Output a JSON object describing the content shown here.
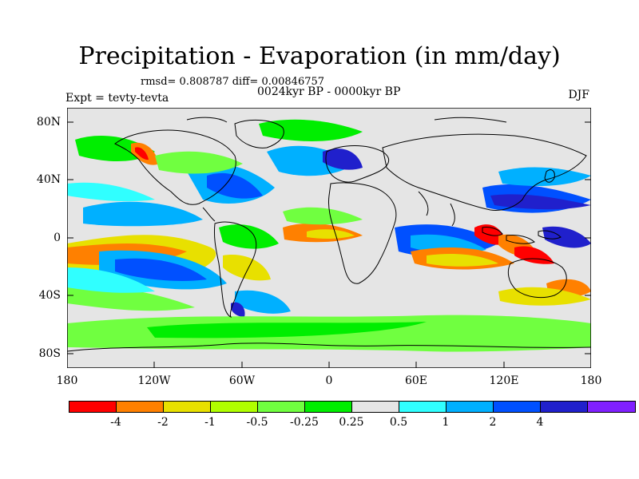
{
  "title": "Precipitation - Evaporation (in mm/day)",
  "stats": "rmsd= 0.808787 diff= 0.00846757",
  "period": "0024kyr BP - 0000kyr BP",
  "experiment": "Expt = tevty-tevta",
  "season": "DJF",
  "map": {
    "background_color": "#e5e5e5",
    "lat_ticks": [
      "80N",
      "40N",
      "0",
      "40S",
      "80S"
    ],
    "lon_ticks": [
      "180",
      "120W",
      "60W",
      "0",
      "60E",
      "120E",
      "180"
    ]
  },
  "colorbar": {
    "colors": [
      "#ff0000",
      "#ff8000",
      "#e8e000",
      "#b0ff00",
      "#70ff40",
      "#00ee00",
      "#e5e5e5",
      "#30ffff",
      "#00b0ff",
      "#0050ff",
      "#2020cc",
      "#8020ff"
    ],
    "labels": [
      "-4",
      "-2",
      "-1",
      "-0.5",
      "-0.25",
      "0.25",
      "0.5",
      "1",
      "2",
      "4"
    ]
  }
}
